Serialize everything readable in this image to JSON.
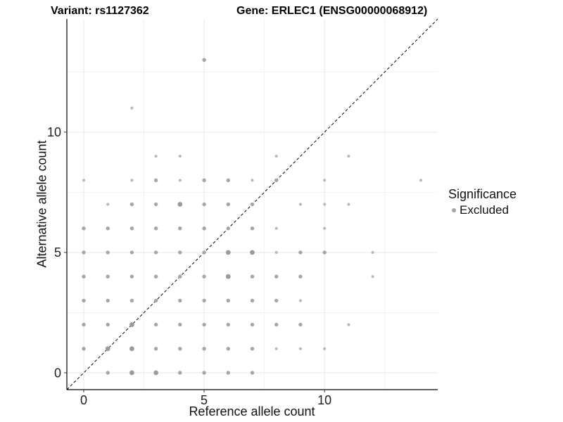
{
  "header": {
    "variant_title": "Variant: rs1127362",
    "gene_title": "Gene: ERLEC1 (ENSG00000068912)"
  },
  "legend": {
    "title": "Significance",
    "items": [
      {
        "label": "Excluded",
        "color": "#a6a6a6"
      }
    ]
  },
  "chart_data": {
    "type": "scatter",
    "title": "",
    "xlabel": "Reference allele count",
    "ylabel": "Alternative allele count",
    "xlim": [
      -0.7,
      14.7
    ],
    "ylim": [
      -0.7,
      14.7
    ],
    "x_ticks": [
      0,
      5,
      10
    ],
    "y_ticks": [
      0,
      5,
      10
    ],
    "x_minor_ticks": [
      2.5,
      7.5,
      12.5
    ],
    "y_minor_ticks": [
      2.5,
      7.5,
      12.5
    ],
    "grid": "on",
    "legend_position": "right",
    "identity_line": {
      "slope": 1,
      "intercept": 0,
      "style": "dashed",
      "color": "#000000"
    },
    "major_grid_color": "#e7e7e7",
    "minor_grid_color": "#f2f2f2",
    "axis_line_color": "#000000",
    "point_color": "#a6a6a6",
    "size_tiers": {
      "1": {
        "r": 2.1,
        "color": "#b9b9b9"
      },
      "2": {
        "r": 2.7,
        "color": "#a6a6a6"
      },
      "3": {
        "r": 3.4,
        "color": "#9b9b9b"
      }
    },
    "points": [
      [
        1,
        0,
        2
      ],
      [
        2,
        0,
        3
      ],
      [
        3,
        0,
        3
      ],
      [
        4,
        0,
        2
      ],
      [
        5,
        0,
        2
      ],
      [
        6,
        0,
        2
      ],
      [
        7,
        0,
        2
      ],
      [
        0,
        1,
        2
      ],
      [
        1,
        1,
        3
      ],
      [
        2,
        1,
        3
      ],
      [
        3,
        1,
        2
      ],
      [
        4,
        1,
        2
      ],
      [
        5,
        1,
        2
      ],
      [
        6,
        1,
        2
      ],
      [
        7,
        1,
        2
      ],
      [
        8,
        1,
        1
      ],
      [
        9,
        1,
        1
      ],
      [
        10,
        1,
        1
      ],
      [
        0,
        2,
        2
      ],
      [
        1,
        2,
        2
      ],
      [
        2,
        2,
        3
      ],
      [
        3,
        2,
        2
      ],
      [
        4,
        2,
        2
      ],
      [
        5,
        2,
        2
      ],
      [
        6,
        2,
        2
      ],
      [
        7,
        2,
        2
      ],
      [
        8,
        2,
        2
      ],
      [
        9,
        2,
        2
      ],
      [
        11,
        2,
        1
      ],
      [
        0,
        3,
        2
      ],
      [
        1,
        3,
        2
      ],
      [
        2,
        3,
        2
      ],
      [
        3,
        3,
        2
      ],
      [
        4,
        3,
        2
      ],
      [
        5,
        3,
        2
      ],
      [
        6,
        3,
        2
      ],
      [
        7,
        3,
        2
      ],
      [
        8,
        3,
        2
      ],
      [
        9,
        3,
        1
      ],
      [
        0,
        4,
        2
      ],
      [
        1,
        4,
        2
      ],
      [
        2,
        4,
        2
      ],
      [
        3,
        4,
        2
      ],
      [
        4,
        4,
        2
      ],
      [
        5,
        4,
        2
      ],
      [
        6,
        4,
        3
      ],
      [
        7,
        4,
        2
      ],
      [
        8,
        4,
        2
      ],
      [
        9,
        4,
        2
      ],
      [
        12,
        4,
        1
      ],
      [
        0,
        5,
        2
      ],
      [
        1,
        5,
        2
      ],
      [
        2,
        5,
        2
      ],
      [
        3,
        5,
        2
      ],
      [
        4,
        5,
        2
      ],
      [
        5,
        5,
        2
      ],
      [
        6,
        5,
        3
      ],
      [
        7,
        5,
        3
      ],
      [
        8,
        5,
        1
      ],
      [
        9,
        5,
        2
      ],
      [
        10,
        5,
        2
      ],
      [
        12,
        5,
        1
      ],
      [
        0,
        6,
        2
      ],
      [
        1,
        6,
        2
      ],
      [
        2,
        6,
        2
      ],
      [
        3,
        6,
        2
      ],
      [
        4,
        6,
        2
      ],
      [
        5,
        6,
        2
      ],
      [
        6,
        6,
        2
      ],
      [
        7,
        6,
        2
      ],
      [
        8,
        6,
        1
      ],
      [
        10,
        6,
        1
      ],
      [
        1,
        7,
        1
      ],
      [
        2,
        7,
        2
      ],
      [
        3,
        7,
        2
      ],
      [
        4,
        7,
        3
      ],
      [
        5,
        7,
        2
      ],
      [
        6,
        7,
        2
      ],
      [
        7,
        7,
        2
      ],
      [
        9,
        7,
        1
      ],
      [
        10,
        7,
        1
      ],
      [
        11,
        7,
        1
      ],
      [
        0,
        8,
        1
      ],
      [
        2,
        8,
        1
      ],
      [
        3,
        8,
        2
      ],
      [
        4,
        8,
        1
      ],
      [
        5,
        8,
        2
      ],
      [
        6,
        8,
        2
      ],
      [
        7,
        8,
        1
      ],
      [
        8,
        8,
        2
      ],
      [
        10,
        8,
        1
      ],
      [
        14,
        8,
        1
      ],
      [
        3,
        9,
        1
      ],
      [
        4,
        9,
        1
      ],
      [
        8,
        9,
        1
      ],
      [
        11,
        9,
        1
      ],
      [
        2,
        11,
        1
      ],
      [
        5,
        13,
        2
      ]
    ]
  }
}
